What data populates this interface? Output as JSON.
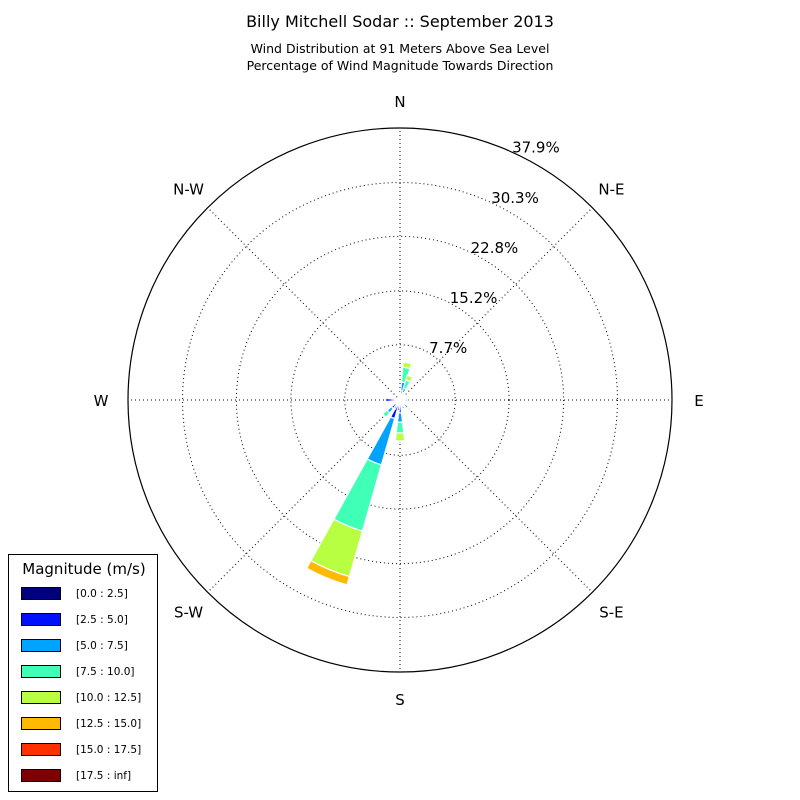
{
  "chart_data": {
    "type": "windrose",
    "title": "Billy Mitchell Sodar :: September 2013",
    "subtitle_line1": "Wind Distribution at 91 Meters Above Sea Level",
    "subtitle_line2": "Percentage of Wind Magnitude Towards Direction",
    "direction_labels": [
      {
        "text": "N",
        "angle": 0
      },
      {
        "text": "N-E",
        "angle": 45
      },
      {
        "text": "E",
        "angle": 90
      },
      {
        "text": "S-E",
        "angle": 135
      },
      {
        "text": "S",
        "angle": 180
      },
      {
        "text": "S-W",
        "angle": 225
      },
      {
        "text": "W",
        "angle": 270
      },
      {
        "text": "N-W",
        "angle": 315
      }
    ],
    "radial_ticks": [
      7.7,
      15.2,
      22.8,
      30.3,
      37.9
    ],
    "radial_tick_labels": [
      "7.7%",
      "15.2%",
      "22.8%",
      "30.3%",
      "37.9%"
    ],
    "rmax": 37.9,
    "grid": true,
    "legend_title": "Magnitude (m/s)",
    "legend_position": "lower-left",
    "bins": [
      {
        "label": "[0.0 : 2.5]",
        "color": "#00007f"
      },
      {
        "label": "[2.5 : 5.0]",
        "color": "#0010ff"
      },
      {
        "label": "[5.0 : 7.5]",
        "color": "#00a4ff"
      },
      {
        "label": "[7.5 : 10.0]",
        "color": "#40ffb7"
      },
      {
        "label": "[10.0 : 12.5]",
        "color": "#b7ff40"
      },
      {
        "label": "[12.5 : 15.0]",
        "color": "#ffb900"
      },
      {
        "label": "[15.0 : 17.5]",
        "color": "#ff3000"
      },
      {
        "label": "[17.5 : inf]",
        "color": "#7f0000"
      }
    ],
    "sector_width_deg": 13,
    "directions": [
      {
        "angle": 0,
        "cum": [
          0.2,
          0.6,
          0.8,
          1.0,
          1.0,
          1.0,
          1.0,
          1.0
        ]
      },
      {
        "angle": 11.25,
        "cum": [
          0.3,
          1.3,
          2.5,
          4.6,
          5.3,
          5.3,
          5.3,
          5.3
        ]
      },
      {
        "angle": 22.5,
        "cum": [
          0.3,
          1.1,
          1.7,
          2.9,
          3.6,
          3.6,
          3.6,
          3.6
        ]
      },
      {
        "angle": 33.75,
        "cum": [
          0.2,
          0.5,
          0.9,
          1.1,
          1.1,
          1.1,
          1.1,
          1.1
        ]
      },
      {
        "angle": 45,
        "cum": [
          0.2,
          0.4,
          0.7,
          0.7,
          0.7,
          0.7,
          0.7,
          0.7
        ]
      },
      {
        "angle": 67.5,
        "cum": [
          0.2,
          0.4,
          0.4,
          0.4,
          0.4,
          0.4,
          0.4,
          0.4
        ]
      },
      {
        "angle": 90,
        "cum": [
          0.3,
          1.1,
          1.1,
          1.1,
          1.1,
          1.1,
          1.1,
          1.1
        ]
      },
      {
        "angle": 112.5,
        "cum": [
          0.2,
          0.5,
          0.5,
          0.5,
          0.5,
          0.5,
          0.5,
          0.5
        ]
      },
      {
        "angle": 135,
        "cum": [
          0.2,
          0.8,
          1.5,
          1.7,
          1.7,
          1.7,
          1.7,
          1.7
        ]
      },
      {
        "angle": 157.5,
        "cum": [
          0.2,
          0.9,
          1.3,
          1.3,
          1.3,
          1.3,
          1.3,
          1.3
        ]
      },
      {
        "angle": 180,
        "cum": [
          0.3,
          1.8,
          3.1,
          4.6,
          5.7,
          5.7,
          5.7,
          5.7
        ]
      },
      {
        "angle": 191.25,
        "cum": [
          0.3,
          1.5,
          1.7,
          1.7,
          1.7,
          1.7,
          1.7,
          1.7
        ]
      },
      {
        "angle": 202.5,
        "cum": [
          0.3,
          2.7,
          9.4,
          19.0,
          25.6,
          26.8,
          26.8,
          26.8
        ]
      },
      {
        "angle": 213.75,
        "cum": [
          0.3,
          1.0,
          1.4,
          1.4,
          1.4,
          1.4,
          1.4,
          1.4
        ]
      },
      {
        "angle": 225,
        "cum": [
          0.3,
          1.5,
          2.3,
          3.1,
          3.1,
          3.1,
          3.1,
          3.1
        ]
      },
      {
        "angle": 247.5,
        "cum": [
          0.2,
          0.6,
          0.6,
          0.6,
          0.6,
          0.6,
          0.6,
          0.6
        ]
      },
      {
        "angle": 270,
        "cum": [
          0.3,
          2.0,
          2.0,
          2.0,
          2.0,
          2.0,
          2.0,
          2.0
        ]
      },
      {
        "angle": 292.5,
        "cum": [
          0.2,
          0.5,
          0.5,
          0.5,
          0.5,
          0.5,
          0.5,
          0.5
        ]
      },
      {
        "angle": 315,
        "cum": [
          0.2,
          0.4,
          0.4,
          0.4,
          0.4,
          0.4,
          0.4,
          0.4
        ]
      },
      {
        "angle": 337.5,
        "cum": [
          0.2,
          0.6,
          0.6,
          0.6,
          0.6,
          0.6,
          0.6,
          0.6
        ]
      }
    ]
  }
}
